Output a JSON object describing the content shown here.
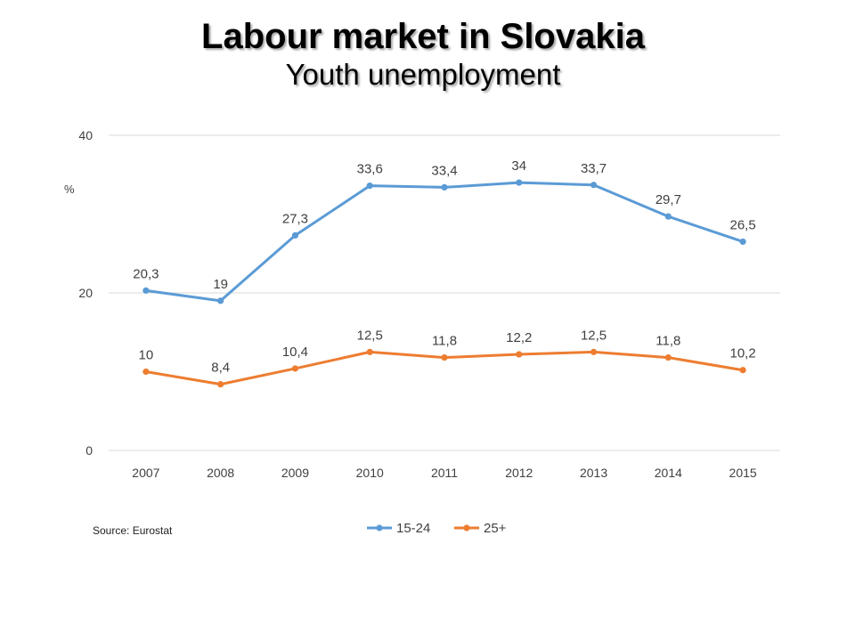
{
  "header": {
    "title": "Labour market in Slovakia",
    "subtitle": "Youth unemployment"
  },
  "source": "Source: Eurostat",
  "chart_data": {
    "type": "line",
    "title": "Labour market in Slovakia",
    "subtitle": "Youth unemployment",
    "ylabel": "%",
    "xlabel": "",
    "categories": [
      "2007",
      "2008",
      "2009",
      "2010",
      "2011",
      "2012",
      "2013",
      "2014",
      "2015"
    ],
    "ylim": [
      0,
      40
    ],
    "yticks": [
      "0",
      "20",
      "40"
    ],
    "grid": true,
    "legend_position": "bottom",
    "series": [
      {
        "name": "15-24",
        "color": "#5b9bd5",
        "values": [
          20.3,
          19,
          27.3,
          33.6,
          33.4,
          34,
          33.7,
          29.7,
          26.5
        ],
        "labels": [
          "20,3",
          "19",
          "27,3",
          "33,6",
          "33,4",
          "34",
          "33,7",
          "29,7",
          "26,5"
        ]
      },
      {
        "name": "25+",
        "color": "#ed7d31",
        "values": [
          10,
          8.4,
          10.4,
          12.5,
          11.8,
          12.2,
          12.5,
          11.8,
          10.2
        ],
        "labels": [
          "10",
          "8,4",
          "10,4",
          "12,5",
          "11,8",
          "12,2",
          "12,5",
          "11,8",
          "10,2"
        ]
      }
    ]
  }
}
